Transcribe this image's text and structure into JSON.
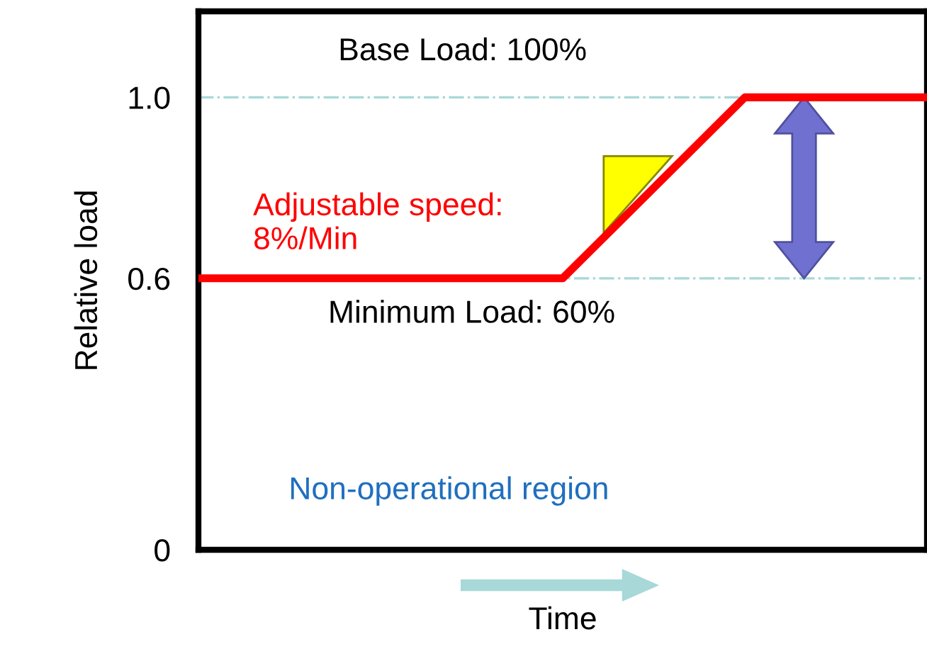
{
  "chart_data": {
    "type": "line",
    "xlabel": "Time",
    "ylabel": "Relative load",
    "categories": [
      null,
      null,
      null,
      null,
      null,
      null,
      null,
      null,
      null
    ],
    "series": [
      {
        "color": "#ff0000",
        "values": [
          0.6,
          0.6,
          0.6,
          0.6,
          0.6,
          0.8,
          1.0,
          1.0,
          1.0
        ]
      }
    ],
    "ylim": [
      0,
      1.19
    ],
    "yticks": [
      0,
      0.6,
      {
        "value": 1.0,
        "label": "1.0"
      }
    ],
    "ref_lines": [
      {
        "axis": "y",
        "value": 1.0,
        "color": "#a8d8d8",
        "line_style": "dashdot"
      },
      {
        "axis": "y",
        "value": 0.6,
        "color": "#a8d8d8",
        "line_style": "dashdot"
      }
    ],
    "annotations": [
      {
        "text": "Base Load: 100%",
        "y": 1.0
      },
      "Adjustable speed:\n8%/Min",
      {
        "text": "Minimum Load: 60%",
        "y": 0.6
      },
      "Non-operational region"
    ],
    "grid": false,
    "legend": false,
    "marker": "none",
    "line_style": "solid"
  }
}
